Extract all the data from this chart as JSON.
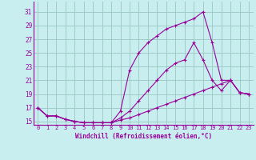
{
  "xlabel": "Windchill (Refroidissement éolien,°C)",
  "background_color": "#c8eef0",
  "grid_color": "#a0ccc8",
  "line_color": "#990099",
  "xlim": [
    -0.5,
    23.5
  ],
  "ylim": [
    14.5,
    32.5
  ],
  "xticks": [
    0,
    1,
    2,
    3,
    4,
    5,
    6,
    7,
    8,
    9,
    10,
    11,
    12,
    13,
    14,
    15,
    16,
    17,
    18,
    19,
    20,
    21,
    22,
    23
  ],
  "yticks": [
    15,
    17,
    19,
    21,
    23,
    25,
    27,
    29,
    31
  ],
  "line1_x": [
    0,
    1,
    2,
    3,
    4,
    5,
    6,
    7,
    8,
    9,
    10,
    11,
    12,
    13,
    14,
    15,
    16,
    17,
    18,
    19,
    20,
    21,
    22,
    23
  ],
  "line1_y": [
    17.0,
    15.8,
    15.8,
    15.3,
    15.0,
    14.8,
    14.8,
    14.8,
    14.8,
    15.2,
    15.5,
    16.0,
    16.5,
    17.0,
    17.5,
    18.0,
    18.5,
    19.0,
    19.5,
    20.0,
    20.5,
    21.0,
    19.2,
    19.0
  ],
  "line2_x": [
    0,
    1,
    2,
    3,
    4,
    5,
    6,
    7,
    8,
    9,
    10,
    11,
    12,
    13,
    14,
    15,
    16,
    17,
    18,
    19,
    20,
    21,
    22,
    23
  ],
  "line2_y": [
    17.0,
    15.8,
    15.8,
    15.3,
    15.0,
    14.8,
    14.8,
    14.8,
    14.8,
    15.5,
    16.5,
    18.0,
    19.5,
    21.0,
    22.5,
    23.5,
    24.0,
    26.5,
    24.0,
    21.0,
    19.5,
    21.0,
    19.2,
    19.0
  ],
  "line3_x": [
    0,
    1,
    2,
    3,
    4,
    5,
    6,
    7,
    8,
    9,
    10,
    11,
    12,
    13,
    14,
    15,
    16,
    17,
    18,
    19,
    20,
    21,
    22,
    23
  ],
  "line3_y": [
    17.0,
    15.8,
    15.8,
    15.3,
    15.0,
    14.8,
    14.8,
    14.8,
    14.8,
    16.5,
    22.5,
    25.0,
    26.5,
    27.5,
    28.5,
    29.0,
    29.5,
    30.0,
    31.0,
    26.5,
    21.0,
    21.0,
    19.2,
    19.0
  ]
}
